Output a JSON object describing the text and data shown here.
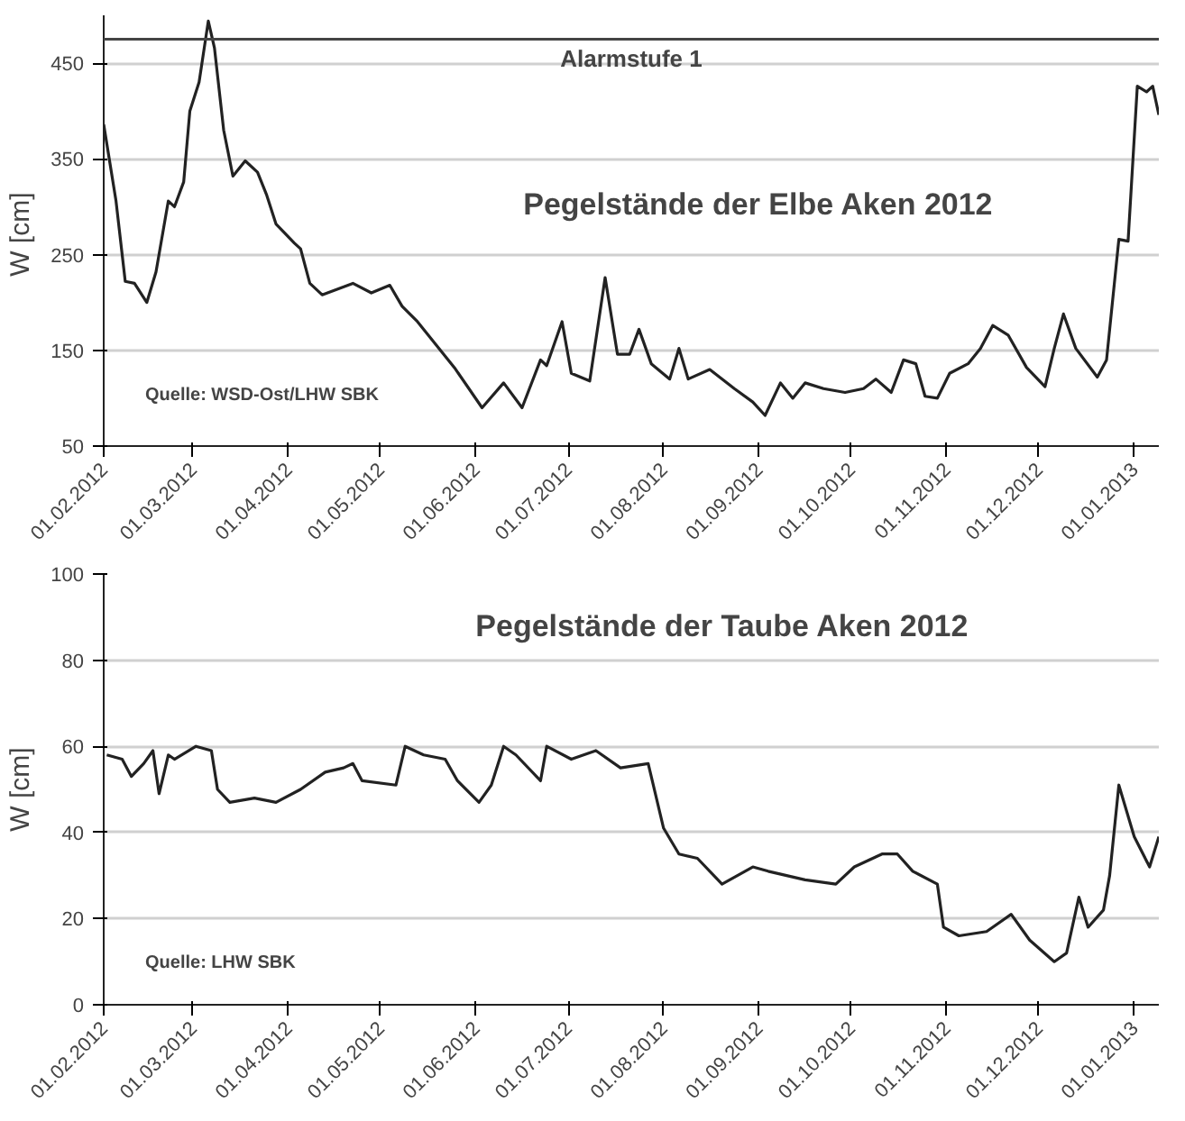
{
  "chart_data": [
    {
      "type": "line",
      "title": "Pegelstände der Elbe Aken 2012",
      "ylabel": "W  [cm]",
      "annotations": [
        "Quelle: WSD-Ost/LHW SBK"
      ],
      "x": [
        "2012-02-01",
        "2012-02-05",
        "2012-02-08",
        "2012-02-11",
        "2012-02-15",
        "2012-02-18",
        "2012-02-22",
        "2012-02-24",
        "2012-02-27",
        "2012-02-29",
        "2012-03-03",
        "2012-03-06",
        "2012-03-08",
        "2012-03-11",
        "2012-03-14",
        "2012-03-18",
        "2012-03-22",
        "2012-03-25",
        "2012-03-28",
        "2012-04-03",
        "2012-04-05",
        "2012-04-08",
        "2012-04-12",
        "2012-04-22",
        "2012-04-28",
        "2012-05-04",
        "2012-05-08",
        "2012-05-13",
        "2012-05-19",
        "2012-05-25",
        "2012-06-03",
        "2012-06-10",
        "2012-06-16",
        "2012-06-22",
        "2012-06-24",
        "2012-06-29",
        "2012-07-02",
        "2012-07-08",
        "2012-07-13",
        "2012-07-17",
        "2012-07-21",
        "2012-07-24",
        "2012-07-28",
        "2012-08-03",
        "2012-08-06",
        "2012-08-09",
        "2012-08-16",
        "2012-08-24",
        "2012-08-30",
        "2012-09-03",
        "2012-09-08",
        "2012-09-12",
        "2012-09-16",
        "2012-09-22",
        "2012-09-29",
        "2012-10-05",
        "2012-10-09",
        "2012-10-14",
        "2012-10-18",
        "2012-10-22",
        "2012-10-25",
        "2012-10-29",
        "2012-11-02",
        "2012-11-08",
        "2012-11-12",
        "2012-11-16",
        "2012-11-21",
        "2012-11-27",
        "2012-12-03",
        "2012-12-06",
        "2012-12-09",
        "2012-12-13",
        "2012-12-20",
        "2012-12-23",
        "2012-12-27",
        "2012-12-30",
        "2013-01-02",
        "2013-01-05",
        "2013-01-07",
        "2013-01-09"
      ],
      "series": [
        {
          "color": "#222222",
          "values": [
            386,
            306,
            222,
            220,
            200,
            232,
            306,
            300,
            326,
            400,
            430,
            494,
            466,
            380,
            332,
            348,
            336,
            312,
            282,
            262,
            256,
            220,
            208,
            220,
            210,
            218,
            196,
            180,
            156,
            132,
            90,
            116,
            90,
            140,
            134,
            180,
            126,
            118,
            226,
            146,
            146,
            172,
            136,
            120,
            152,
            120,
            130,
            110,
            96,
            82,
            116,
            100,
            116,
            110,
            106,
            110,
            120,
            106,
            140,
            136,
            102,
            100,
            126,
            136,
            152,
            176,
            166,
            132,
            112,
            152,
            188,
            152,
            122,
            140,
            266,
            264,
            426,
            420,
            426,
            396
          ]
        }
      ],
      "xlim": [
        "2012-02-01",
        "2013-01-09"
      ],
      "xticks": [
        {
          "value": "2012-02-01",
          "label": "01.02.2012"
        },
        {
          "value": "2012-03-01",
          "label": "01.03.2012"
        },
        {
          "value": "2012-04-01",
          "label": "01.04.2012"
        },
        {
          "value": "2012-05-01",
          "label": "01.05.2012"
        },
        {
          "value": "2012-06-01",
          "label": "01.06.2012"
        },
        {
          "value": "2012-07-01",
          "label": "01.07.2012"
        },
        {
          "value": "2012-08-01",
          "label": "01.08.2012"
        },
        {
          "value": "2012-09-01",
          "label": "01.09.2012"
        },
        {
          "value": "2012-10-01",
          "label": "01.10.2012"
        },
        {
          "value": "2012-11-01",
          "label": "01.11.2012"
        },
        {
          "value": "2012-12-01",
          "label": "01.12.2012"
        },
        {
          "value": "2013-01-01",
          "label": "01.01.2013"
        }
      ],
      "ylim": [
        50,
        500
      ],
      "yticks": [
        50,
        150,
        250,
        350,
        450
      ],
      "ref_lines": [
        {
          "axis": "y",
          "value": 475,
          "label": "Alarmstufe 1",
          "color": "#444444"
        }
      ],
      "grid": "y"
    },
    {
      "type": "line",
      "title": "Pegelstände der Taube Aken 2012",
      "ylabel": "W [cm]",
      "annotations": [
        "Quelle: LHW SBK"
      ],
      "x": [
        "2012-02-02",
        "2012-02-07",
        "2012-02-10",
        "2012-02-14",
        "2012-02-17",
        "2012-02-19",
        "2012-02-22",
        "2012-02-24",
        "2012-03-02",
        "2012-03-07",
        "2012-03-09",
        "2012-03-13",
        "2012-03-21",
        "2012-03-28",
        "2012-04-05",
        "2012-04-13",
        "2012-04-19",
        "2012-04-22",
        "2012-04-25",
        "2012-05-06",
        "2012-05-09",
        "2012-05-15",
        "2012-05-22",
        "2012-05-26",
        "2012-06-02",
        "2012-06-06",
        "2012-06-10",
        "2012-06-14",
        "2012-06-22",
        "2012-06-24",
        "2012-07-02",
        "2012-07-10",
        "2012-07-18",
        "2012-07-27",
        "2012-08-01",
        "2012-08-06",
        "2012-08-12",
        "2012-08-20",
        "2012-08-30",
        "2012-09-04",
        "2012-09-16",
        "2012-09-26",
        "2012-10-02",
        "2012-10-11",
        "2012-10-16",
        "2012-10-21",
        "2012-10-29",
        "2012-10-31",
        "2012-11-05",
        "2012-11-14",
        "2012-11-22",
        "2012-11-28",
        "2012-12-06",
        "2012-12-10",
        "2012-12-14",
        "2012-12-17",
        "2012-12-22",
        "2012-12-24",
        "2012-12-27",
        "2013-01-01",
        "2013-01-06",
        "2013-01-09"
      ],
      "series": [
        {
          "color": "#222222",
          "values": [
            58,
            57,
            53,
            56,
            59,
            49,
            58,
            57,
            60,
            59,
            50,
            47,
            48,
            47,
            50,
            54,
            55,
            56,
            52,
            51,
            60,
            58,
            57,
            52,
            47,
            51,
            60,
            58,
            52,
            60,
            57,
            59,
            55,
            56,
            41,
            35,
            34,
            28,
            32,
            31,
            29,
            28,
            32,
            35,
            35,
            31,
            28,
            18,
            16,
            17,
            21,
            15,
            10,
            12,
            25,
            18,
            22,
            30,
            51,
            39,
            32,
            39
          ]
        }
      ],
      "xlim": [
        "2012-02-01",
        "2013-01-09"
      ],
      "xticks": [
        {
          "value": "2012-02-01",
          "label": "01.02.2012"
        },
        {
          "value": "2012-03-01",
          "label": "01.03.2012"
        },
        {
          "value": "2012-04-01",
          "label": "01.04.2012"
        },
        {
          "value": "2012-05-01",
          "label": "01.05.2012"
        },
        {
          "value": "2012-06-01",
          "label": "01.06.2012"
        },
        {
          "value": "2012-07-01",
          "label": "01.07.2012"
        },
        {
          "value": "2012-08-01",
          "label": "01.08.2012"
        },
        {
          "value": "2012-09-01",
          "label": "01.09.2012"
        },
        {
          "value": "2012-10-01",
          "label": "01.10.2012"
        },
        {
          "value": "2012-11-01",
          "label": "01.11.2012"
        },
        {
          "value": "2012-12-01",
          "label": "01.12.2012"
        },
        {
          "value": "2013-01-01",
          "label": "01.01.2013"
        }
      ],
      "ylim": [
        0,
        100
      ],
      "yticks": [
        0,
        20,
        40,
        60,
        80,
        100
      ],
      "grid": "y"
    }
  ]
}
